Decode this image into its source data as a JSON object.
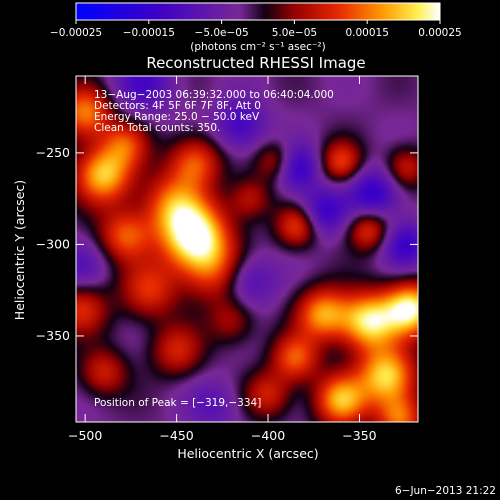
{
  "chart_data": {
    "type": "heatmap",
    "title": "Reconstructed RHESSI Image",
    "xlabel": "Heliocentric X (arcsec)",
    "ylabel": "Heliocentric Y (arcsec)",
    "xlim": [
      -505,
      -318
    ],
    "ylim": [
      -397,
      -208
    ],
    "x_ticks": [
      {
        "value": -500,
        "label": "−500"
      },
      {
        "value": -450,
        "label": "−450"
      },
      {
        "value": -400,
        "label": "−400"
      },
      {
        "value": -350,
        "label": "−350"
      }
    ],
    "y_ticks": [
      {
        "value": -250,
        "label": "−250"
      },
      {
        "value": -300,
        "label": "−300"
      },
      {
        "value": -350,
        "label": "−350"
      }
    ],
    "colorbar": {
      "range": [
        -0.00025,
        0.00025
      ],
      "ticks": [
        {
          "value": -0.00025,
          "label": "−0.00025"
        },
        {
          "value": -0.00015,
          "label": "−0.00015"
        },
        {
          "value": -5e-05,
          "label": "−5.0e−05"
        },
        {
          "value": 5e-05,
          "label": "5.0e−05"
        },
        {
          "value": 0.00015,
          "label": "0.00015"
        },
        {
          "value": 0.00025,
          "label": "0.00025"
        }
      ],
      "unit_label": "(photons cm⁻² s⁻¹ asec⁻²)"
    },
    "annotations": [
      "13−Aug−2003 06:39:32.000 to 06:40:04.000",
      "Detectors: 4F 5F 6F 7F 8F, Att 0",
      "Energy Range: 25.0 − 50.0 keV",
      "Clean    Total counts: 350."
    ],
    "peak_text": "Position of Peak = [−319,−334]",
    "peak": {
      "x": -319,
      "y": -334
    },
    "sources": [
      {
        "x": -440,
        "y": -296,
        "amp": 1.0,
        "s": 13
      },
      {
        "x": -452,
        "y": -278,
        "amp": 0.55,
        "s": 12
      },
      {
        "x": -440,
        "y": -255,
        "amp": 0.55,
        "s": 10
      },
      {
        "x": -430,
        "y": -315,
        "amp": 0.4,
        "s": 12
      },
      {
        "x": -490,
        "y": -262,
        "amp": 0.8,
        "s": 11
      },
      {
        "x": -500,
        "y": -228,
        "amp": 0.65,
        "s": 10
      },
      {
        "x": -478,
        "y": -245,
        "amp": 0.45,
        "s": 9
      },
      {
        "x": -478,
        "y": -295,
        "amp": 0.55,
        "s": 10
      },
      {
        "x": -465,
        "y": -325,
        "amp": 0.45,
        "s": 11
      },
      {
        "x": -502,
        "y": -335,
        "amp": 0.45,
        "s": 10
      },
      {
        "x": -490,
        "y": -370,
        "amp": 0.4,
        "s": 9
      },
      {
        "x": -450,
        "y": -358,
        "amp": 0.4,
        "s": 10
      },
      {
        "x": -410,
        "y": -275,
        "amp": 0.35,
        "s": 8
      },
      {
        "x": -395,
        "y": -255,
        "amp": 0.45,
        "s": 8
      },
      {
        "x": -384,
        "y": -290,
        "amp": 0.5,
        "s": 8
      },
      {
        "x": -360,
        "y": -255,
        "amp": 0.5,
        "s": 8
      },
      {
        "x": -345,
        "y": -292,
        "amp": 0.5,
        "s": 8
      },
      {
        "x": -325,
        "y": -258,
        "amp": 0.4,
        "s": 8
      },
      {
        "x": -322,
        "y": -335,
        "amp": 0.95,
        "s": 10
      },
      {
        "x": -345,
        "y": -342,
        "amp": 0.9,
        "s": 11
      },
      {
        "x": -370,
        "y": -338,
        "amp": 0.7,
        "s": 10
      },
      {
        "x": -335,
        "y": -372,
        "amp": 0.85,
        "s": 11
      },
      {
        "x": -360,
        "y": -385,
        "amp": 0.75,
        "s": 10
      },
      {
        "x": -385,
        "y": -362,
        "amp": 0.55,
        "s": 9
      },
      {
        "x": -400,
        "y": -382,
        "amp": 0.4,
        "s": 9
      },
      {
        "x": -328,
        "y": -395,
        "amp": 0.6,
        "s": 9
      },
      {
        "x": -420,
        "y": -342,
        "amp": 0.3,
        "s": 9
      },
      {
        "x": -385,
        "y": -258,
        "amp": -0.55,
        "s": 9
      },
      {
        "x": -370,
        "y": -282,
        "amp": -0.45,
        "s": 9
      },
      {
        "x": -342,
        "y": -272,
        "amp": -0.5,
        "s": 10
      },
      {
        "x": -325,
        "y": -300,
        "amp": -0.45,
        "s": 9
      },
      {
        "x": -415,
        "y": -235,
        "amp": -0.4,
        "s": 10
      },
      {
        "x": -410,
        "y": -320,
        "amp": -0.35,
        "s": 10
      },
      {
        "x": -468,
        "y": -212,
        "amp": -0.35,
        "s": 12
      },
      {
        "x": -503,
        "y": -312,
        "amp": -0.25,
        "s": 10
      },
      {
        "x": -430,
        "y": -388,
        "amp": -0.25,
        "s": 10
      }
    ]
  },
  "footer": {
    "timestamp": "6−Jun−2013 21:22"
  }
}
